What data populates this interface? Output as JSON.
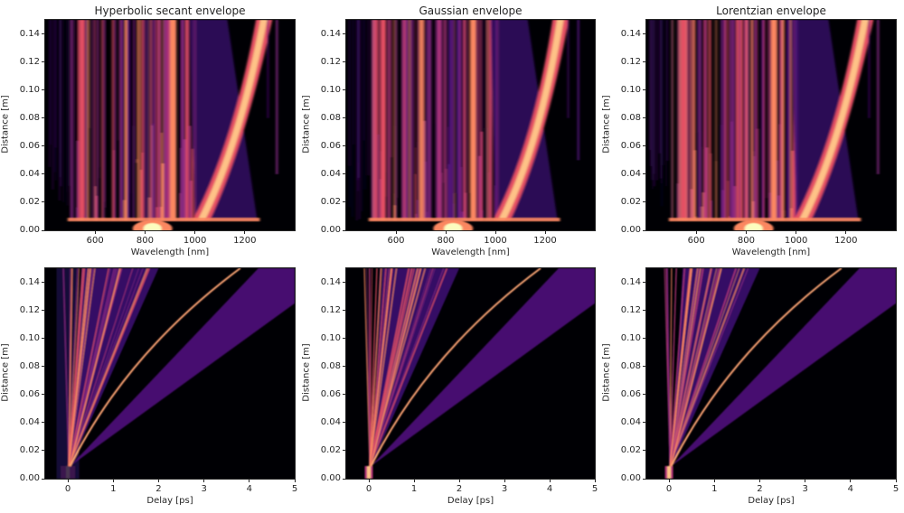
{
  "figure": {
    "background": "#ffffff",
    "colormap": "magma"
  },
  "chart_data": [
    {
      "type": "heatmap",
      "title": "Hyperbolic secant envelope",
      "xlabel": "Wavelength [nm]",
      "ylabel": "Distance [m]",
      "xlim": [
        400,
        1400
      ],
      "ylim": [
        0.0,
        0.15
      ],
      "xticks": [
        600,
        800,
        1000,
        1200
      ],
      "xticklabels": [
        "600",
        "800",
        "1000",
        "1200"
      ],
      "yticks": [
        0.0,
        0.02,
        0.04,
        0.06,
        0.08,
        0.1,
        0.12,
        0.14
      ],
      "yticklabels": [
        "0.00",
        "0.02",
        "0.04",
        "0.06",
        "0.08",
        "0.10",
        "0.12",
        "0.14"
      ],
      "description": "Supercontinuum spectral evolution; pump at ~830 nm; broadening at ~0.007 m from ~500 to ~1250 nm; soliton self-frequency shift from ~1000 nm to ~1270 nm; dispersive wave feature near ~1330 nm"
    },
    {
      "type": "heatmap",
      "title": "Gaussian envelope",
      "xlabel": "Wavelength [nm]",
      "ylabel": "Distance [m]",
      "xlim": [
        400,
        1400
      ],
      "ylim": [
        0.0,
        0.15
      ],
      "xticks": [
        600,
        800,
        1000,
        1200
      ],
      "xticklabels": [
        "600",
        "800",
        "1000",
        "1200"
      ],
      "yticks": [
        0.0,
        0.02,
        0.04,
        0.06,
        0.08,
        0.1,
        0.12,
        0.14
      ],
      "yticklabels": [
        "0.00",
        "0.02",
        "0.04",
        "0.06",
        "0.08",
        "0.10",
        "0.12",
        "0.14"
      ],
      "description": "Supercontinuum spectral evolution; pump at ~830 nm; soliton shift from ~1000 nm to ~1260 nm"
    },
    {
      "type": "heatmap",
      "title": "Lorentzian envelope",
      "xlabel": "Wavelength [nm]",
      "ylabel": "Distance [m]",
      "xlim": [
        400,
        1400
      ],
      "ylim": [
        0.0,
        0.15
      ],
      "xticks": [
        600,
        800,
        1000,
        1200
      ],
      "xticklabels": [
        "600",
        "800",
        "1000",
        "1200"
      ],
      "yticks": [
        0.0,
        0.02,
        0.04,
        0.06,
        0.08,
        0.1,
        0.12,
        0.14
      ],
      "yticklabels": [
        "0.00",
        "0.02",
        "0.04",
        "0.06",
        "0.08",
        "0.10",
        "0.12",
        "0.14"
      ],
      "description": "Supercontinuum spectral evolution; pump at ~830 nm; soliton shift from ~1000 nm to ~1270 nm"
    },
    {
      "type": "heatmap",
      "title": "",
      "xlabel": "Delay [ps]",
      "ylabel": "Distance [m]",
      "xlim": [
        -0.5,
        5
      ],
      "ylim": [
        0.0,
        0.15
      ],
      "xticks": [
        0,
        1,
        2,
        3,
        4,
        5
      ],
      "xticklabels": [
        "0",
        "1",
        "2",
        "3",
        "4",
        "5"
      ],
      "yticks": [
        0.0,
        0.02,
        0.04,
        0.06,
        0.08,
        0.1,
        0.12,
        0.14
      ],
      "yticklabels": [
        "0.00",
        "0.02",
        "0.04",
        "0.06",
        "0.08",
        "0.10",
        "0.12",
        "0.14"
      ],
      "description": "Temporal evolution; pulse at 0 ps until fission at ~0.009 m; soliton trajectories fanning out reaching ~0.5, ~1.2 and ~3.8 ps at 0.15 m; dispersive tail to ~5 ps"
    },
    {
      "type": "heatmap",
      "title": "",
      "xlabel": "Delay [ps]",
      "ylabel": "Distance [m]",
      "xlim": [
        -0.5,
        5
      ],
      "ylim": [
        0.0,
        0.15
      ],
      "xticks": [
        0,
        1,
        2,
        3,
        4,
        5
      ],
      "xticklabels": [
        "0",
        "1",
        "2",
        "3",
        "4",
        "5"
      ],
      "yticks": [
        0.0,
        0.02,
        0.04,
        0.06,
        0.08,
        0.1,
        0.12,
        0.14
      ],
      "yticklabels": [
        "0.00",
        "0.02",
        "0.04",
        "0.06",
        "0.08",
        "0.10",
        "0.12",
        "0.14"
      ],
      "description": "Temporal evolution; main soliton reaches ~3.8 ps at 0.15 m"
    },
    {
      "type": "heatmap",
      "title": "",
      "xlabel": "Delay [ps]",
      "ylabel": "Distance [m]",
      "xlim": [
        -0.5,
        5
      ],
      "ylim": [
        0.0,
        0.15
      ],
      "xticks": [
        0,
        1,
        2,
        3,
        4,
        5
      ],
      "xticklabels": [
        "0",
        "1",
        "2",
        "3",
        "4",
        "5"
      ],
      "yticks": [
        0.0,
        0.02,
        0.04,
        0.06,
        0.08,
        0.1,
        0.12,
        0.14
      ],
      "yticklabels": [
        "0.00",
        "0.02",
        "0.04",
        "0.06",
        "0.08",
        "0.10",
        "0.12",
        "0.14"
      ],
      "description": "Temporal evolution; main soliton reaches ~3.8 ps at 0.15 m; wider pedestal at 0 ps"
    }
  ]
}
